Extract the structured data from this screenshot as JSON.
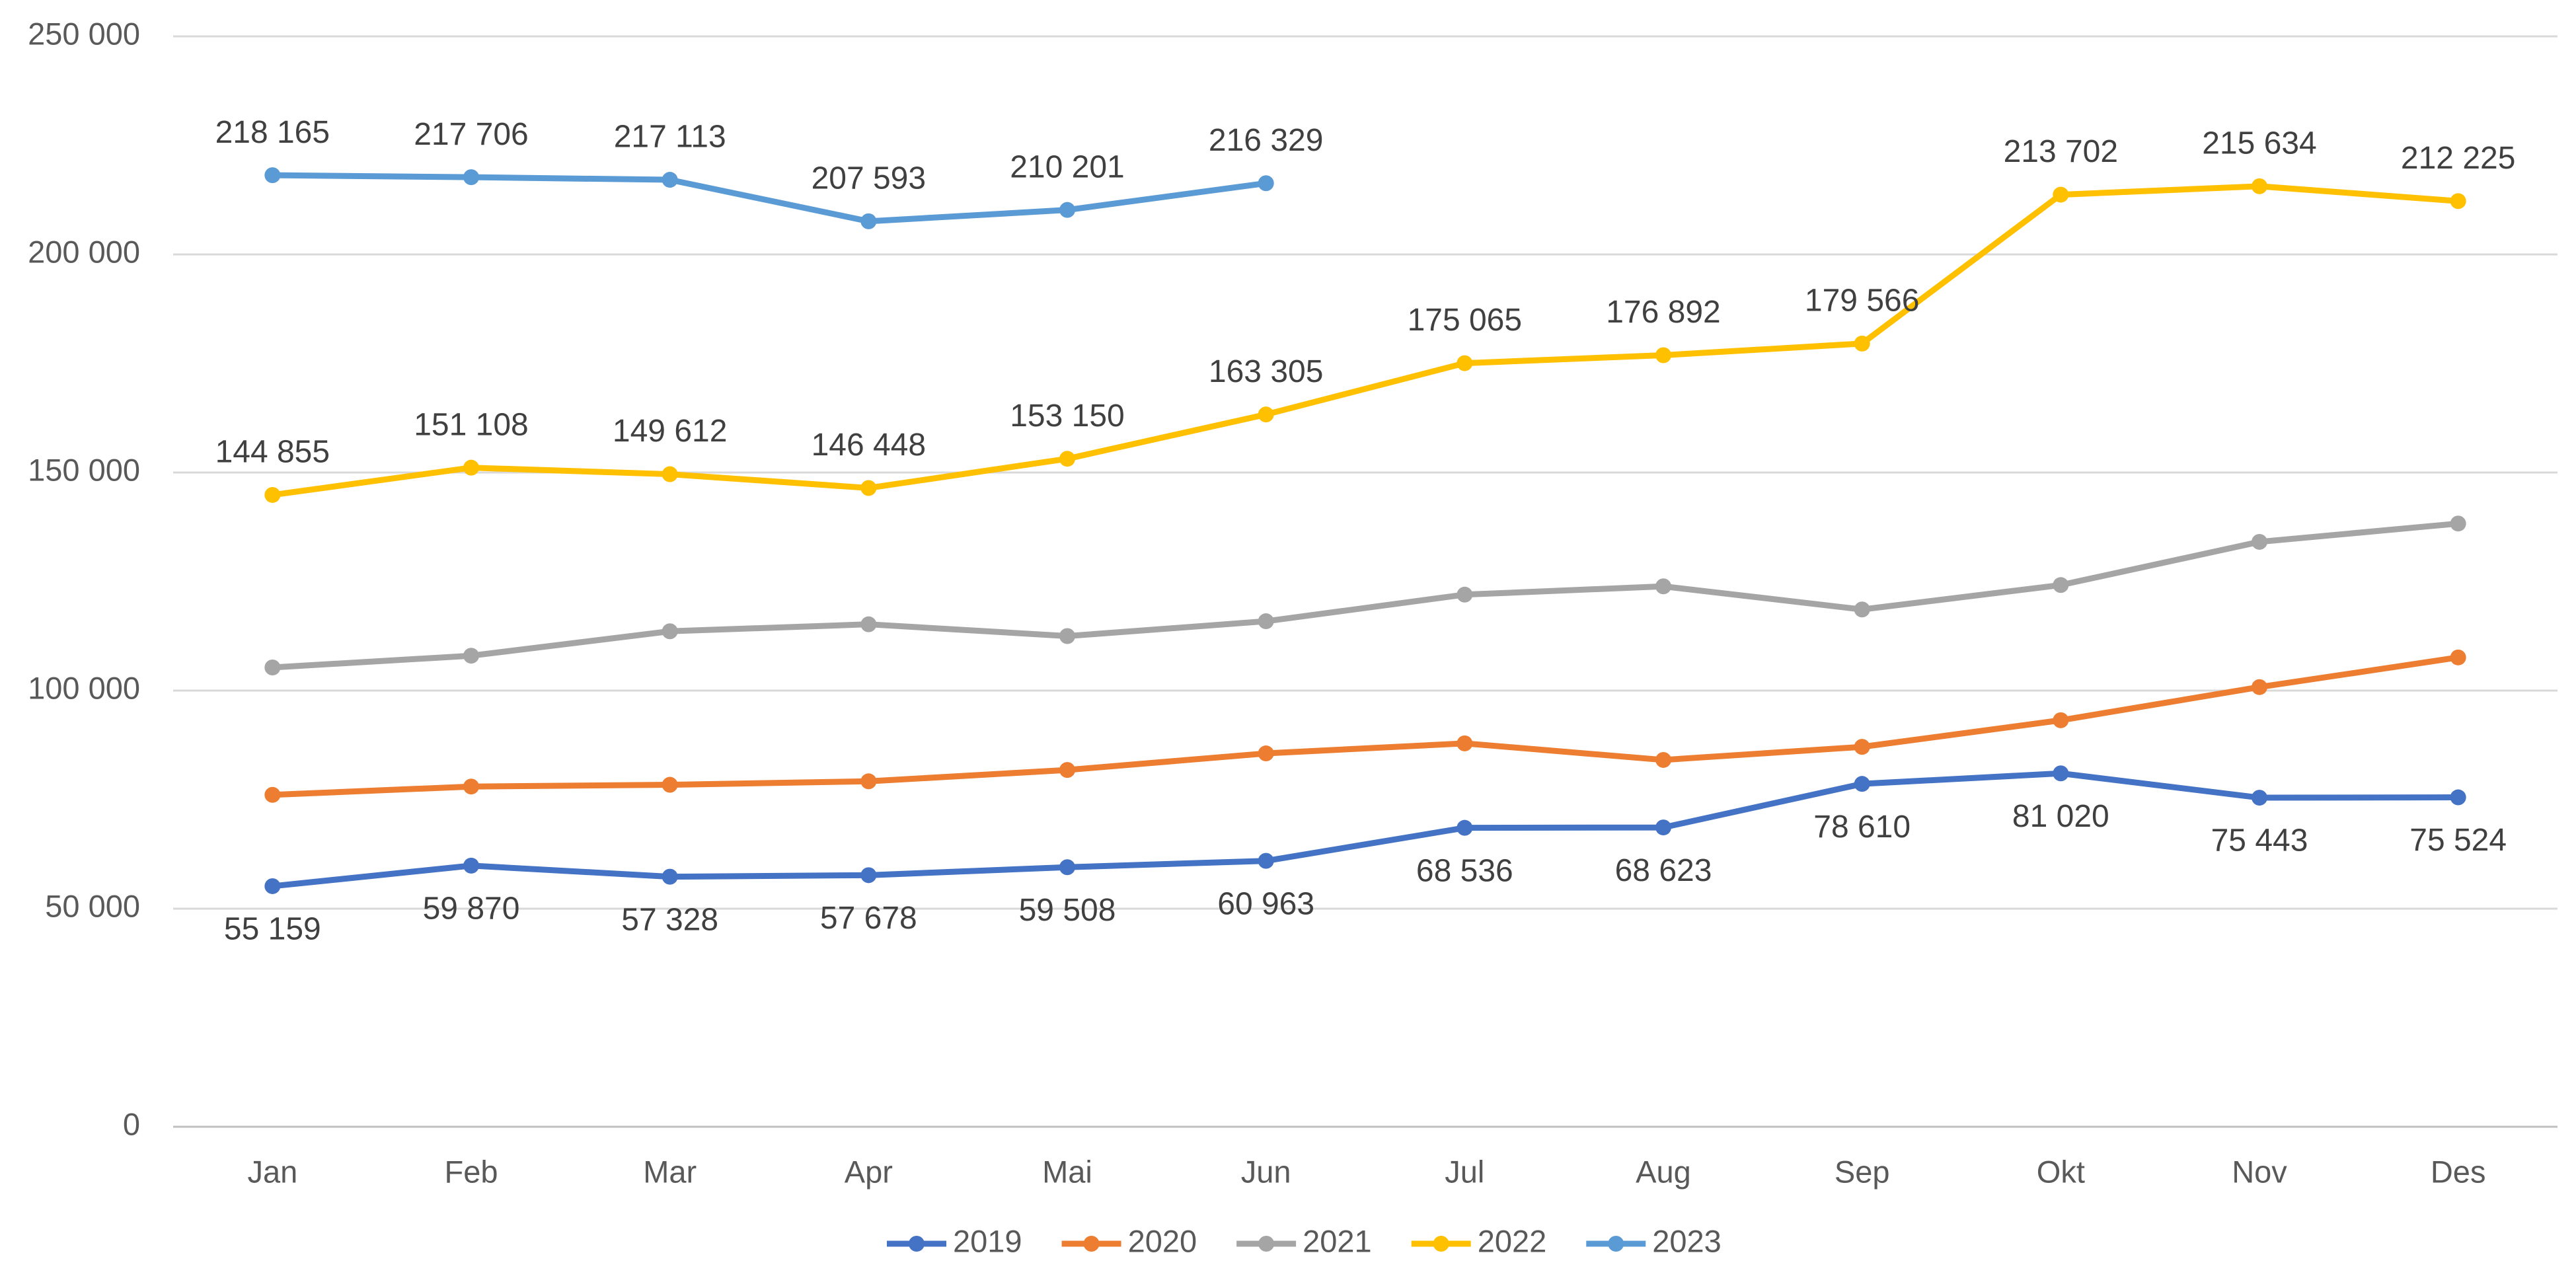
{
  "chart_data": {
    "type": "line",
    "categories": [
      "Jan",
      "Feb",
      "Mar",
      "Apr",
      "Mai",
      "Jun",
      "Jul",
      "Aug",
      "Sep",
      "Okt",
      "Nov",
      "Des"
    ],
    "series": [
      {
        "name": "2019",
        "color": "#4472c4",
        "label_position": "below",
        "values": [
          55159,
          59870,
          57328,
          57678,
          59508,
          60963,
          68536,
          68623,
          78610,
          81020,
          75443,
          75524
        ],
        "value_labels": [
          "55 159",
          "59 870",
          "57 328",
          "57 678",
          "59 508",
          "60 963",
          "68 536",
          "68 623",
          "78 610",
          "81 020",
          "75 443",
          "75 524"
        ]
      },
      {
        "name": "2020",
        "color": "#ed7d31",
        "values": [
          76100,
          78000,
          78400,
          79200,
          81800,
          85600,
          87900,
          84100,
          87100,
          93200,
          100800,
          107600
        ]
      },
      {
        "name": "2021",
        "color": "#a5a5a5",
        "values": [
          105300,
          108000,
          113600,
          115200,
          112500,
          115900,
          122000,
          123900,
          118600,
          124200,
          134100,
          138300
        ]
      },
      {
        "name": "2022",
        "color": "#ffc000",
        "label_position": "above",
        "values": [
          144855,
          151108,
          149612,
          146448,
          153150,
          163305,
          175065,
          176892,
          179566,
          213702,
          215634,
          212225
        ],
        "value_labels": [
          "144 855",
          "151 108",
          "149 612",
          "146 448",
          "153 150",
          "163 305",
          "175 065",
          "176 892",
          "179 566",
          "213 702",
          "215 634",
          "212 225"
        ]
      },
      {
        "name": "2023",
        "color": "#5b9bd5",
        "label_position": "above",
        "values": [
          218165,
          217706,
          217113,
          207593,
          210201,
          216329,
          null,
          null,
          null,
          null,
          null,
          null
        ],
        "value_labels": [
          "218 165",
          "217 706",
          "217 113",
          "207 593",
          "210 201",
          "216 329",
          null,
          null,
          null,
          null,
          null,
          null
        ]
      }
    ],
    "ylim": [
      0,
      250000
    ],
    "yticks": [
      0,
      {
        "value": 50000,
        "label": "50 000"
      },
      {
        "value": 100000,
        "label": "100 000"
      },
      {
        "value": 150000,
        "label": "150 000"
      },
      {
        "value": 200000,
        "label": "200 000"
      },
      {
        "value": 250000,
        "label": "250 000"
      }
    ],
    "grid": true,
    "legend": "bottom"
  }
}
